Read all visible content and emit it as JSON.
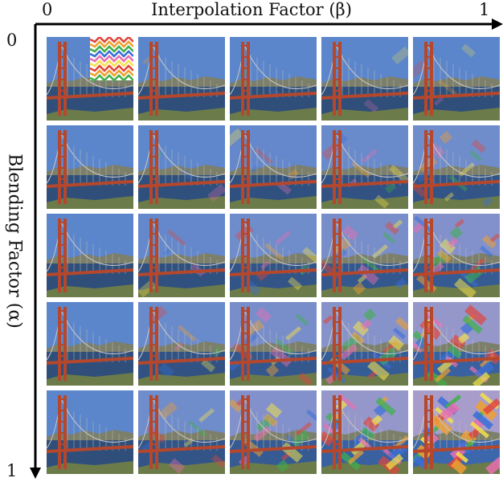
{
  "x_axis": {
    "label": "Interpolation Factor (β)",
    "start": "0",
    "end": "1",
    "values": [
      0,
      0.25,
      0.5,
      0.75,
      1
    ]
  },
  "y_axis": {
    "label": "Blending Factor (α)",
    "start": "0",
    "end": "1",
    "values": [
      0,
      0.25,
      0.5,
      0.75,
      1
    ]
  },
  "style_swatch_colors": [
    "#e0463c",
    "#f0a030",
    "#3fb04a",
    "#3a6fd8",
    "#e96fb0",
    "#f4e24a"
  ],
  "scene_colors": {
    "sky": "#5b86cc",
    "water": "#2f4f7a",
    "bridge": "#b5472c",
    "hills": "#7c7f6a"
  }
}
